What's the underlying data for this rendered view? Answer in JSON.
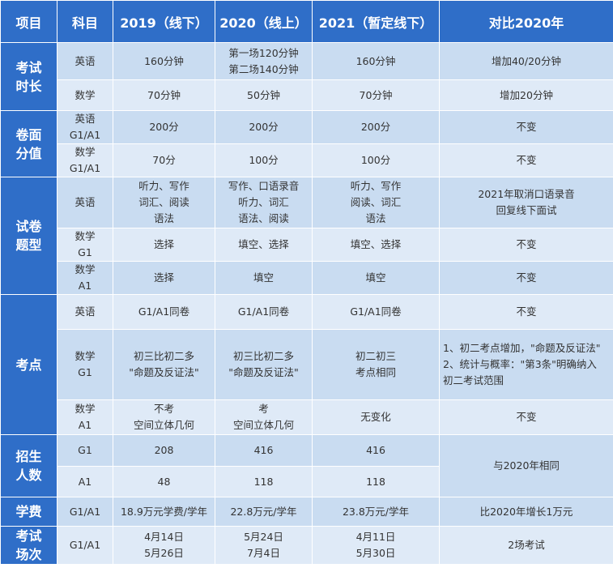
{
  "header": [
    "项目",
    "科目",
    "2019（线下）",
    "2020（线上）",
    "2021（暂定线下）",
    "对比2020年"
  ],
  "sections": [
    {
      "category": "考试时长",
      "rows": [
        {
          "subject": "英语",
          "y2019": "160分钟",
          "y2020": "第一场120分钟\n第二场140分钟",
          "y2021": "160分钟",
          "compare": "增加40/20分钟"
        },
        {
          "subject": "数学",
          "y2019": "70分钟",
          "y2020": "50分钟",
          "y2021": "70分钟",
          "compare": "增加20分钟"
        }
      ]
    },
    {
      "category": "卷面分值",
      "rows": [
        {
          "subject": "英语\nG1/A1",
          "y2019": "200分",
          "y2020": "200分",
          "y2021": "200分",
          "compare": "不变"
        },
        {
          "subject": "数学\nG1/A1",
          "y2019": "70分",
          "y2020": "100分",
          "y2021": "100分",
          "compare": "不变"
        }
      ]
    },
    {
      "category": "试卷题型",
      "rows": [
        {
          "subject": "英语",
          "y2019": "听力、写作\n词汇、阅读\n语法",
          "y2020": "写作、口语录音\n听力、词汇\n语法、阅读",
          "y2021": "听力、写作\n阅读、词汇\n语法",
          "compare": "2021年取消口语录音\n回复线下面试"
        },
        {
          "subject": "数学\nG1",
          "y2019": "选择",
          "y2020": "填空、选择",
          "y2021": "填空、选择",
          "compare": "不变"
        },
        {
          "subject": "数学\nA1",
          "y2019": "选择",
          "y2020": "填空",
          "y2021": "填空",
          "compare": "不变"
        }
      ]
    },
    {
      "category": "考点",
      "rows": [
        {
          "subject": "英语",
          "y2019": "G1/A1同卷",
          "y2020": "G1/A1同卷",
          "y2021": "G1/A1同卷",
          "compare": "不变"
        },
        {
          "subject": "数学\nG1",
          "y2019": "初三比初二多\n\"命题及反证法\"",
          "y2020": "初三比初二多\n\"命题及反证法\"",
          "y2021": "初二初三\n考点相同",
          "compare": "1、初二考点增加，\"命题及反证法\"\n2、统计与概率：\"第3条\"明确纳入\n初二考试范围"
        },
        {
          "subject": "数学\nA1",
          "y2019": "不考\n空间立体几何",
          "y2020": "考\n空间立体几何",
          "y2021": "无变化",
          "compare": "不变"
        }
      ]
    },
    {
      "category": "招生人数",
      "compare_merged": "与2020年相同",
      "rows": [
        {
          "subject": "G1",
          "y2019": "208",
          "y2020": "416",
          "y2021": "416"
        },
        {
          "subject": "A1",
          "y2019": "48",
          "y2020": "118",
          "y2021": "118"
        }
      ]
    },
    {
      "category": "学费",
      "rows": [
        {
          "subject": "G1/A1",
          "y2019": "18.9万元学费/学年",
          "y2020": "22.8万元/学年",
          "y2021": "23.8万元/学年",
          "compare": "比2020年增长1万元"
        }
      ]
    },
    {
      "category": "考试场次",
      "rows": [
        {
          "subject": "G1/A1",
          "y2019": "4月14日\n5月26日",
          "y2020": "5月24日\n7月4日",
          "y2021": "4月11日\n5月30日",
          "compare": "2场考试"
        }
      ]
    }
  ],
  "colors": {
    "header_bg": "#2f6ec8",
    "row_odd_bg": "#c9dcf1",
    "row_even_bg": "#dfeaf7",
    "text": "#333333"
  }
}
